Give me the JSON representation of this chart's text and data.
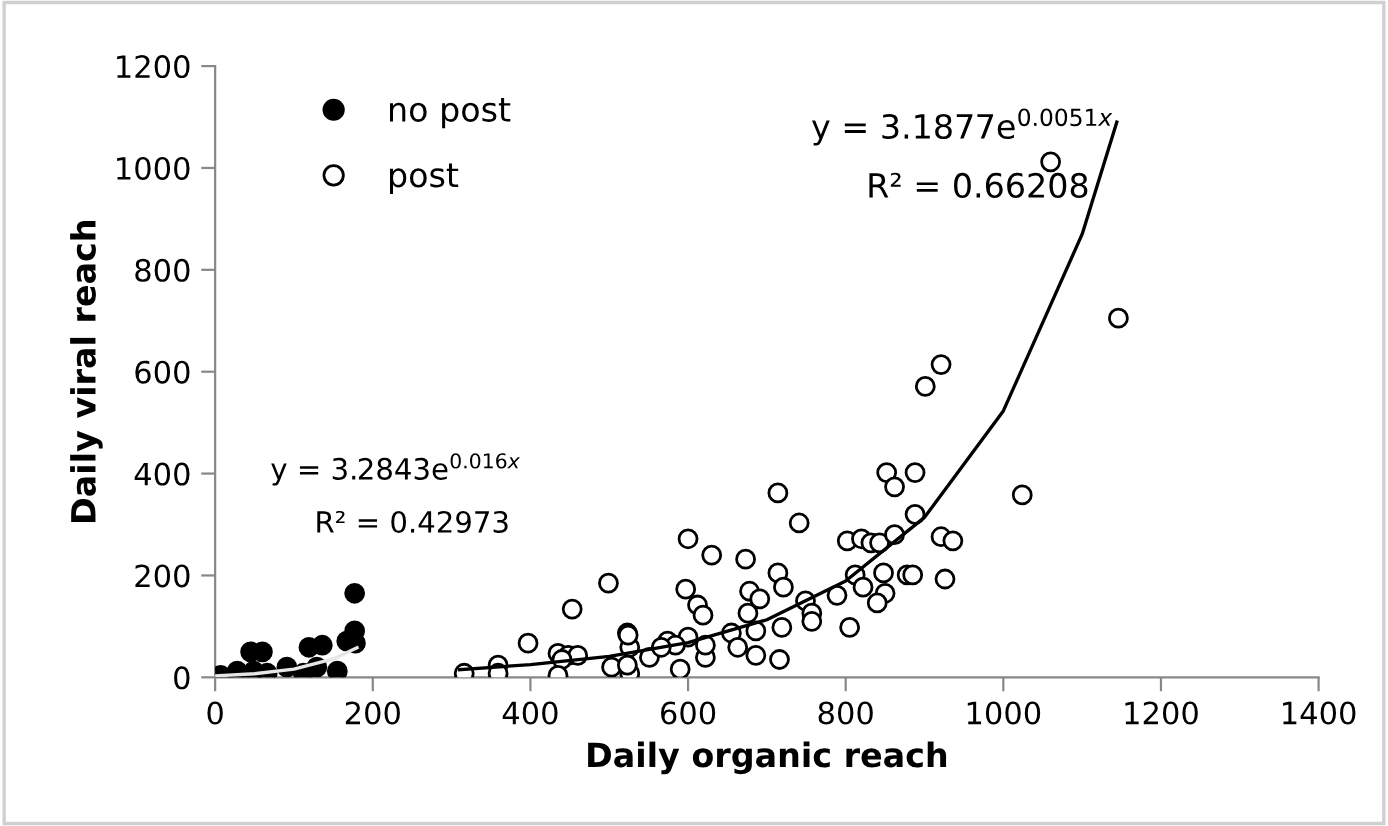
{
  "chart_data": {
    "type": "scatter",
    "xlabel": "Daily organic reach",
    "ylabel": "Daily viral reach",
    "xlim": [
      0,
      1400
    ],
    "xticks": [
      0,
      200,
      400,
      600,
      800,
      1000,
      1200,
      1400
    ],
    "ylim": [
      0,
      1200
    ],
    "yticks": [
      0,
      200,
      400,
      600,
      800,
      1000,
      1200
    ],
    "grid": false,
    "legend": "top left",
    "series": [
      {
        "name": "no post",
        "marker": "circle",
        "color": "#000000",
        "x": [
          177,
          177,
          167,
          119,
          136,
          28,
          91,
          129,
          155,
          7,
          66,
          112,
          49,
          178,
          45,
          60
        ],
        "values": [
          165,
          91,
          71,
          59,
          63,
          12,
          20,
          20,
          12,
          4,
          8,
          8,
          12,
          67,
          50,
          50
        ]
      },
      {
        "name": "post",
        "marker": "circle",
        "color": "#ffffff",
        "x": [
          1060,
          1146,
          921,
          901,
          1024,
          852,
          888,
          862,
          888,
          714,
          741,
          600,
          630,
          673,
          714,
          721,
          802,
          820,
          832,
          843,
          862,
          921,
          936,
          926,
          878,
          885,
          812,
          822,
          848,
          850,
          840,
          789,
          749,
          757,
          757,
          805,
          597,
          612,
          619,
          678,
          691,
          676,
          686,
          719,
          655,
          663,
          686,
          716,
          523,
          526,
          503,
          526,
          551,
          574,
          590,
          600,
          622,
          622,
          584,
          566,
          499,
          453,
          397,
          435,
          448,
          460,
          440,
          435,
          359,
          359,
          316,
          524,
          523
        ],
        "values": [
          1012,
          705,
          614,
          571,
          358,
          402,
          402,
          374,
          320,
          362,
          303,
          272,
          240,
          232,
          205,
          177,
          268,
          272,
          264,
          264,
          280,
          276,
          268,
          193,
          201,
          201,
          201,
          177,
          205,
          165,
          146,
          161,
          150,
          126,
          110,
          98,
          173,
          142,
          122,
          169,
          154,
          126,
          91,
          98,
          87,
          59,
          43,
          35,
          87,
          59,
          20,
          8,
          39,
          71,
          16,
          79,
          39,
          63,
          63,
          59,
          185,
          134,
          67,
          47,
          43,
          43,
          35,
          4,
          24,
          8,
          8,
          83,
          24
        ]
      },
      {
        "type": "line",
        "color": "#e6e6e6",
        "x": [
          0,
          50,
          100,
          150,
          180
        ],
        "values": [
          3,
          7,
          16,
          36,
          58
        ]
      },
      {
        "type": "line",
        "color": "#000000",
        "x": [
          310,
          400,
          500,
          600,
          700,
          800,
          900,
          1000,
          1100,
          1144
        ],
        "values": [
          15,
          25,
          41,
          68,
          113,
          189,
          314,
          523,
          870,
          1090
        ]
      }
    ],
    "annotations": [
      "y = 3.1877e$^{0.0051x}$",
      "R² = 0.66208",
      "y = 3.2843e$^{0.016x}$",
      "R² = 0.42973"
    ]
  }
}
